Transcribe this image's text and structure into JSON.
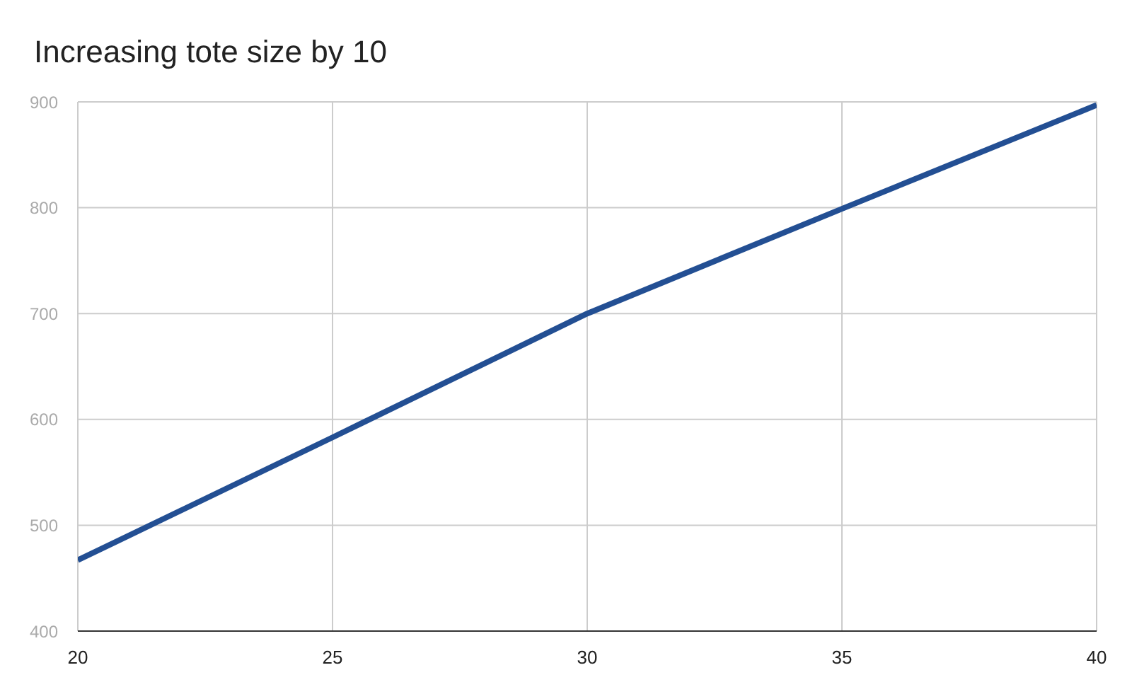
{
  "chart_data": {
    "type": "line",
    "title": "Increasing tote size by 10",
    "x": [
      20,
      25,
      30,
      35,
      40
    ],
    "series": [
      {
        "color": "#234f93",
        "values": [
          467,
          583,
          700,
          799,
          897
        ]
      }
    ],
    "xlim": [
      20,
      40
    ],
    "xticks": [
      20,
      25,
      30,
      35,
      40
    ],
    "ylim": [
      400,
      900
    ],
    "yticks": [
      400,
      500,
      600,
      700,
      800,
      900
    ],
    "grid": true,
    "marker": "none",
    "line_style": "solid"
  }
}
